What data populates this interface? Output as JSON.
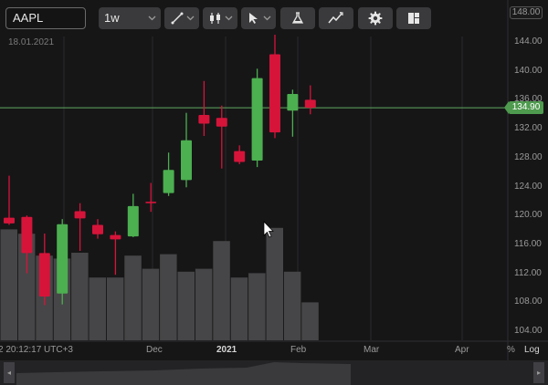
{
  "toolbar": {
    "symbol": "AAPL",
    "interval": "1w",
    "icons": [
      "trendline-icon",
      "candles-icon",
      "cursor-icon",
      "flask-icon",
      "indicators-icon",
      "gear-icon",
      "layout-icon"
    ]
  },
  "date_label": "18.01.2021",
  "price_axis": {
    "top_tag": "148.00",
    "ticks": [
      "144.00",
      "140.00",
      "136.00",
      "132.00",
      "128.00",
      "124.00",
      "120.00",
      "116.00",
      "112.00",
      "108.00",
      "104.00"
    ],
    "last_price": "134.90"
  },
  "time_axis": {
    "timestamp": "2 20:12:17 UTC+3",
    "ticks": [
      "Dec",
      "2021",
      "Feb",
      "Mar",
      "Apr"
    ],
    "pct_label": "%",
    "log_label": "Log"
  },
  "navigator": {
    "left_handle": "◂",
    "right_handle": "▸"
  },
  "colors": {
    "up": "#4caf50",
    "down": "#d6143a",
    "volume": "#464648",
    "last_price_line": "#5fa85f",
    "grid": "#2a2a2c"
  },
  "chart_data": {
    "type": "candlestick",
    "symbol": "AAPL",
    "interval": "1w",
    "candles": [
      {
        "o": 119.7,
        "h": 125.5,
        "l": 118.7,
        "c": 118.9
      },
      {
        "o": 119.8,
        "h": 120.0,
        "l": 112.0,
        "c": 114.8
      },
      {
        "o": 114.8,
        "h": 117.5,
        "l": 107.6,
        "c": 108.8
      },
      {
        "o": 109.2,
        "h": 119.5,
        "l": 107.7,
        "c": 118.8
      },
      {
        "o": 120.6,
        "h": 121.7,
        "l": 115.1,
        "c": 119.6
      },
      {
        "o": 118.7,
        "h": 119.5,
        "l": 116.8,
        "c": 117.4
      },
      {
        "o": 117.3,
        "h": 117.8,
        "l": 111.8,
        "c": 116.7
      },
      {
        "o": 117.1,
        "h": 123.0,
        "l": 117.0,
        "c": 121.3
      },
      {
        "o": 121.9,
        "h": 124.5,
        "l": 120.5,
        "c": 121.7
      },
      {
        "o": 123.1,
        "h": 128.7,
        "l": 122.7,
        "c": 126.3
      },
      {
        "o": 124.9,
        "h": 134.2,
        "l": 123.9,
        "c": 130.4
      },
      {
        "o": 133.9,
        "h": 138.6,
        "l": 131.0,
        "c": 132.7
      },
      {
        "o": 133.5,
        "h": 135.2,
        "l": 126.5,
        "c": 132.3
      },
      {
        "o": 128.9,
        "h": 129.7,
        "l": 127.1,
        "c": 127.4
      },
      {
        "o": 127.6,
        "h": 140.3,
        "l": 126.7,
        "c": 139.0
      },
      {
        "o": 142.3,
        "h": 145.0,
        "l": 130.7,
        "c": 131.5
      },
      {
        "o": 134.5,
        "h": 137.4,
        "l": 130.9,
        "c": 136.8
      },
      {
        "o": 136.0,
        "h": 138.0,
        "l": 134.0,
        "c": 134.9
      }
    ],
    "volume_relative": [
      0.76,
      0.73,
      0.58,
      0.56,
      0.6,
      0.43,
      0.43,
      0.58,
      0.49,
      0.59,
      0.47,
      0.49,
      0.68,
      0.43,
      0.46,
      0.77,
      0.47,
      0.26
    ],
    "ylim": [
      102.0,
      150.0
    ],
    "last_price": 134.9,
    "x_ticks": [
      "Dec",
      "2021",
      "Feb",
      "Mar",
      "Apr"
    ],
    "log_scale": false
  }
}
